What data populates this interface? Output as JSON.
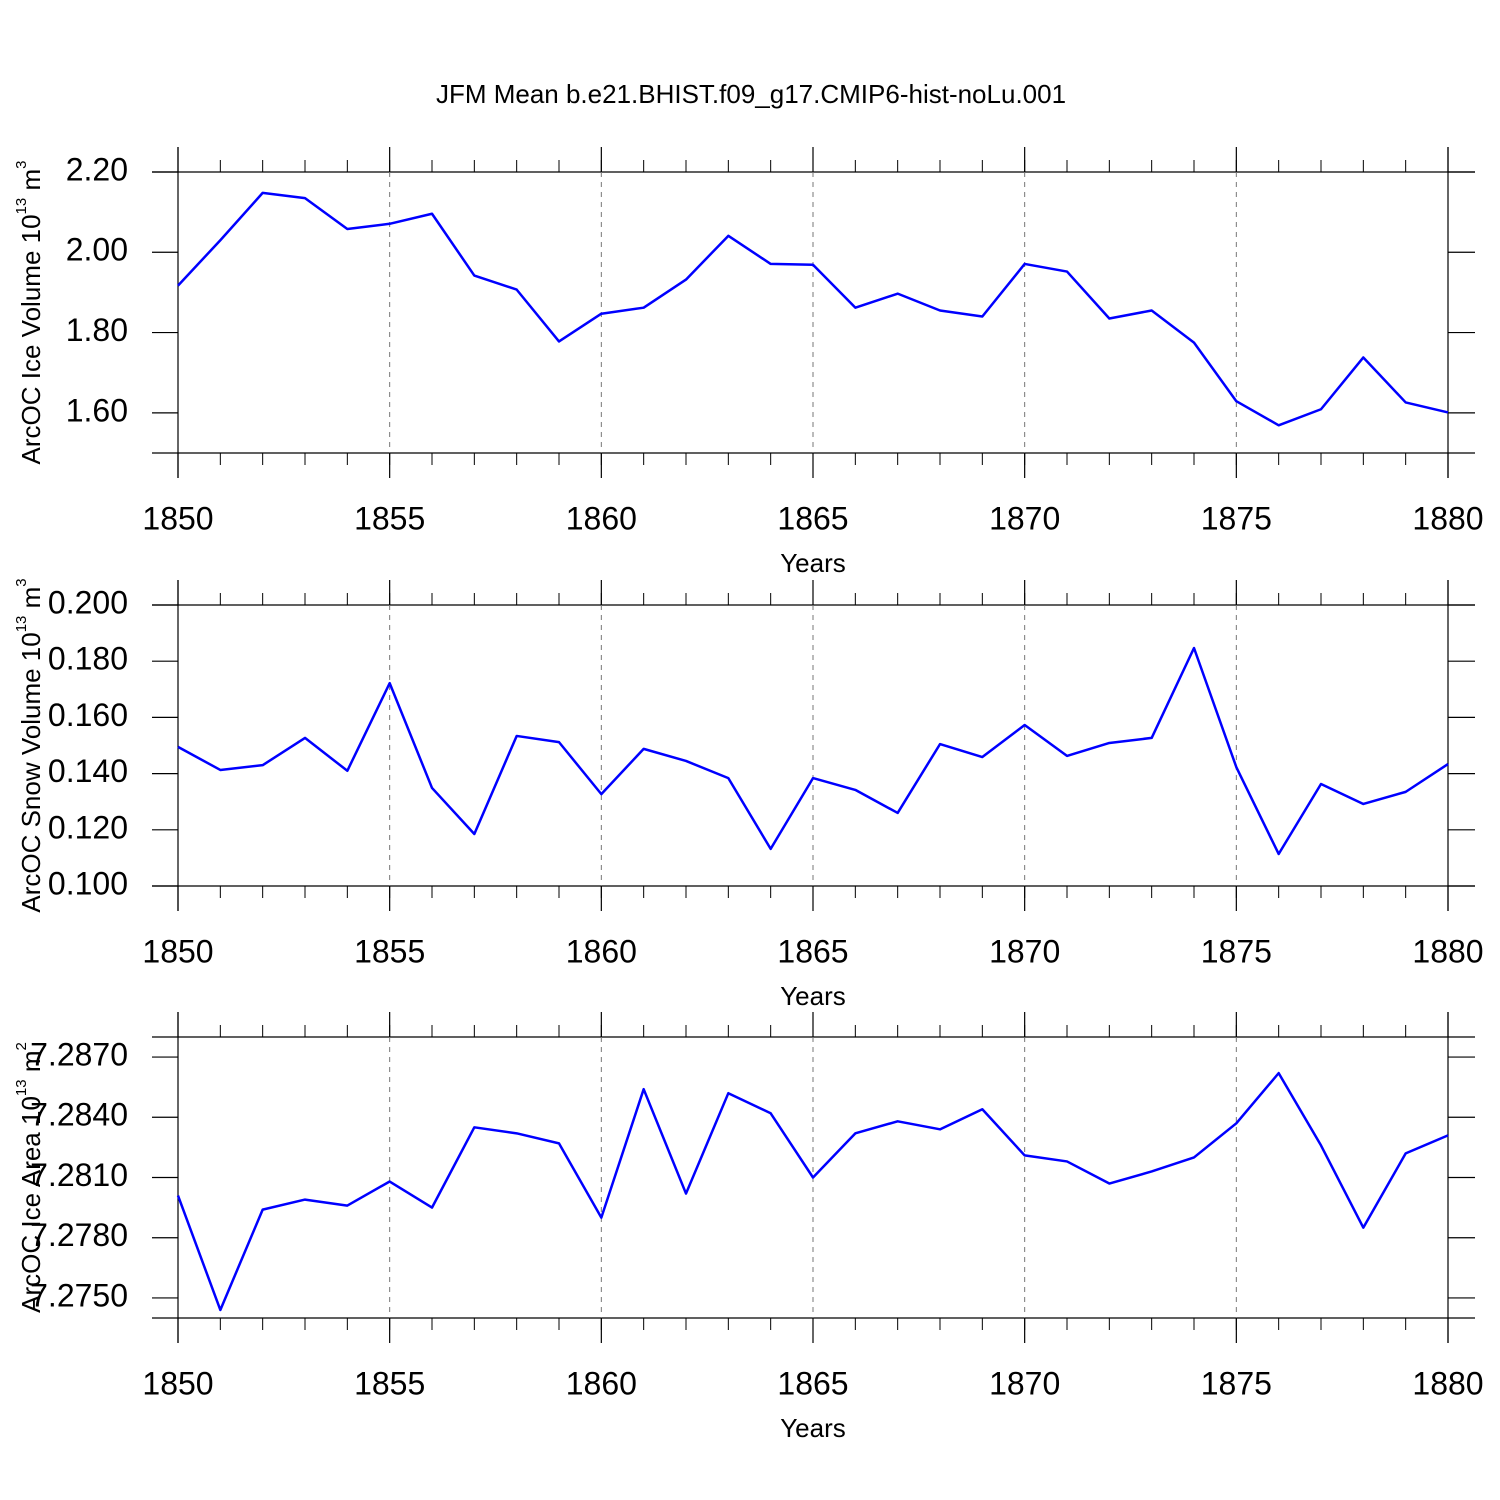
{
  "title": "JFM Mean b.e21.BHIST.f09_g17.CMIP6-hist-noLu.001",
  "chart_data": [
    {
      "type": "line",
      "ylabel": [
        "ArcOC Ice Volume 10",
        "13",
        " m",
        "3"
      ],
      "xlabel": "Years",
      "x": [
        1850,
        1851,
        1852,
        1853,
        1854,
        1855,
        1856,
        1857,
        1858,
        1859,
        1860,
        1861,
        1862,
        1863,
        1864,
        1865,
        1866,
        1867,
        1868,
        1869,
        1870,
        1871,
        1872,
        1873,
        1874,
        1875,
        1876,
        1877,
        1878,
        1879,
        1880
      ],
      "series": [
        {
          "color": "#0000ff",
          "values": [
            1.917,
            2.03,
            2.148,
            2.135,
            2.058,
            2.071,
            2.096,
            1.942,
            1.907,
            1.778,
            1.847,
            1.862,
            1.932,
            2.041,
            1.971,
            1.969,
            1.862,
            1.897,
            1.855,
            1.84,
            1.971,
            1.952,
            1.835,
            1.855,
            1.775,
            1.629,
            1.569,
            1.609,
            1.738,
            1.626,
            1.601
          ]
        }
      ],
      "xlim": [
        1850,
        1880
      ],
      "xticks": [
        1850,
        1855,
        1860,
        1865,
        1870,
        1875,
        1880
      ],
      "ylim": [
        1.5,
        2.2
      ],
      "yticks": [
        {
          "value": 1.6,
          "label": "1.60"
        },
        {
          "value": 1.8,
          "label": "1.80"
        },
        {
          "value": 2.0,
          "label": "2.00"
        },
        {
          "value": 2.2,
          "label": "2.20"
        }
      ],
      "grid": "x-dashed"
    },
    {
      "type": "line",
      "ylabel": [
        "ArcOC Snow Volume 10",
        "13",
        " m",
        "3"
      ],
      "xlabel": "Years",
      "x": [
        1850,
        1851,
        1852,
        1853,
        1854,
        1855,
        1856,
        1857,
        1858,
        1859,
        1860,
        1861,
        1862,
        1863,
        1864,
        1865,
        1866,
        1867,
        1868,
        1869,
        1870,
        1871,
        1872,
        1873,
        1874,
        1875,
        1876,
        1877,
        1878,
        1879,
        1880
      ],
      "series": [
        {
          "color": "#0000ff",
          "values": [
            0.1495,
            0.1413,
            0.143,
            0.1527,
            0.141,
            0.1722,
            0.1349,
            0.1185,
            0.1534,
            0.1512,
            0.1327,
            0.1488,
            0.1445,
            0.1384,
            0.1132,
            0.1384,
            0.1342,
            0.126,
            0.1505,
            0.1459,
            0.1573,
            0.1463,
            0.1509,
            0.1527,
            0.1847,
            0.1423,
            0.1114,
            0.1363,
            0.1292,
            0.1335,
            0.1434
          ]
        }
      ],
      "xlim": [
        1850,
        1880
      ],
      "xticks": [
        1850,
        1855,
        1860,
        1865,
        1870,
        1875,
        1880
      ],
      "ylim": [
        0.1,
        0.2
      ],
      "yticks": [
        {
          "value": 0.1,
          "label": "0.100"
        },
        {
          "value": 0.12,
          "label": "0.120"
        },
        {
          "value": 0.14,
          "label": "0.140"
        },
        {
          "value": 0.16,
          "label": "0.160"
        },
        {
          "value": 0.18,
          "label": "0.180"
        },
        {
          "value": 0.2,
          "label": "0.200"
        }
      ],
      "grid": "x-dashed"
    },
    {
      "type": "line",
      "ylabel": [
        "ArcOC Ice Area 10",
        "13",
        " m",
        "2"
      ],
      "xlabel": "Years",
      "x": [
        1850,
        1851,
        1852,
        1853,
        1854,
        1855,
        1856,
        1857,
        1858,
        1859,
        1860,
        1861,
        1862,
        1863,
        1864,
        1865,
        1866,
        1867,
        1868,
        1869,
        1870,
        1871,
        1872,
        1873,
        1874,
        1875,
        1876,
        1877,
        1878,
        1879,
        1880
      ],
      "series": [
        {
          "color": "#0000ff",
          "values": [
            7.2801,
            7.2744,
            7.2794,
            7.2799,
            7.2796,
            7.2808,
            7.2795,
            7.2835,
            7.2832,
            7.2827,
            7.279,
            7.2854,
            7.2802,
            7.2852,
            7.2842,
            7.281,
            7.2832,
            7.2838,
            7.2834,
            7.2844,
            7.2821,
            7.2818,
            7.2807,
            7.2813,
            7.282,
            7.2837,
            7.2862,
            7.2826,
            7.2785,
            7.2822,
            7.2831
          ]
        }
      ],
      "xlim": [
        1850,
        1880
      ],
      "xticks": [
        1850,
        1855,
        1860,
        1865,
        1870,
        1875,
        1880
      ],
      "ylim": [
        7.274,
        7.288
      ],
      "yticks": [
        {
          "value": 7.275,
          "label": "7.2750"
        },
        {
          "value": 7.278,
          "label": "7.2780"
        },
        {
          "value": 7.281,
          "label": "7.2810"
        },
        {
          "value": 7.284,
          "label": "7.2840"
        },
        {
          "value": 7.287,
          "label": "7.2870"
        }
      ],
      "grid": "x-dashed"
    }
  ]
}
